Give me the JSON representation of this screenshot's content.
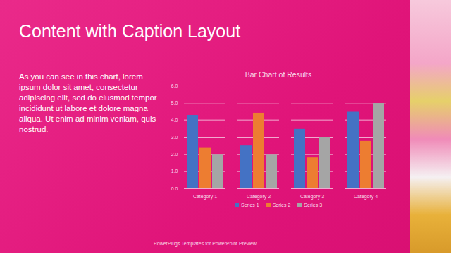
{
  "slide": {
    "title": "Content with Caption Layout",
    "caption": "As you can see in this chart, lorem ipsum dolor sit amet, consectetur adipiscing elit, sed do eiusmod tempor incididunt ut labore et dolore magna aliqua. Ut enim ad minim veniam, quis nostrud.",
    "footer": "PowerPlugs Templates for PowerPoint Preview"
  },
  "chart_data": {
    "type": "bar",
    "title": "Bar Chart of Results",
    "categories": [
      "Category 1",
      "Category 2",
      "Category 3",
      "Category 4"
    ],
    "series": [
      {
        "name": "Series 1",
        "color": "#4472c4",
        "values": [
          4.3,
          2.5,
          3.5,
          4.5
        ]
      },
      {
        "name": "Series 2",
        "color": "#ed7d31",
        "values": [
          2.4,
          4.4,
          1.8,
          2.8
        ]
      },
      {
        "name": "Series 3",
        "color": "#a5a5a5",
        "values": [
          2,
          2,
          3,
          5
        ]
      }
    ],
    "ylim": [
      0,
      6
    ],
    "yticks": [
      0,
      1,
      2,
      3,
      4,
      5,
      6
    ],
    "grid": true,
    "legend": "bottom"
  }
}
